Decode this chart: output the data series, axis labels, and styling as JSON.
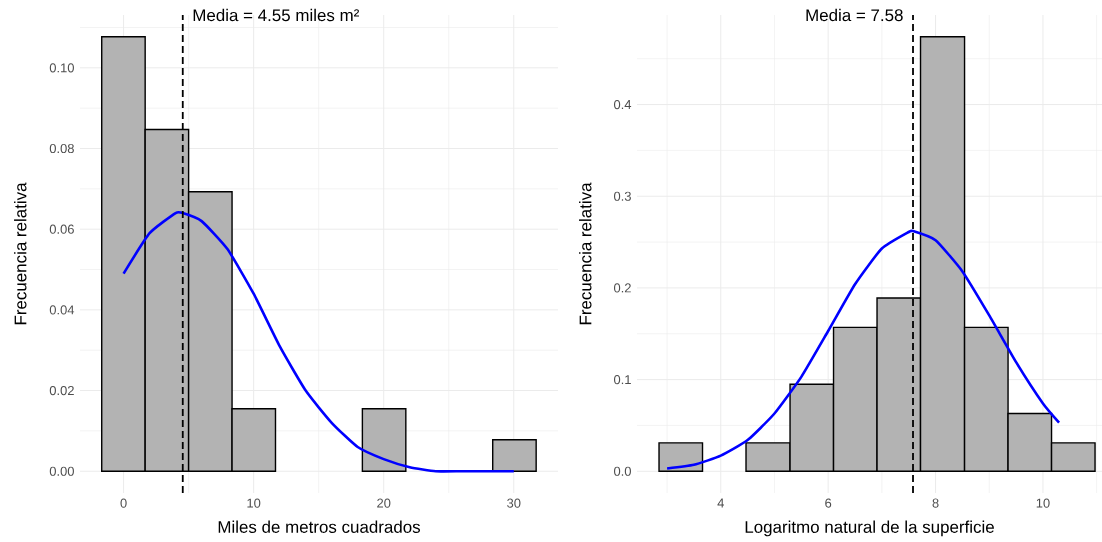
{
  "chart_data": [
    {
      "type": "histogram",
      "xlabel": "Miles de metros cuadrados",
      "ylabel": "Frecuencia relativa",
      "color": "#b3b3b3",
      "bins": [
        -1.68,
        1.66,
        5.0,
        8.34,
        11.68,
        15.02,
        18.36,
        21.7,
        25.04,
        28.38,
        31.72
      ],
      "values": [
        0.1077,
        0.0847,
        0.0693,
        0.0155,
        0,
        0,
        0.0155,
        0,
        0,
        0.0078
      ],
      "series": [
        {
          "type": "line",
          "color": "#0000ff",
          "x": [
            0,
            2,
            4,
            4.55,
            6,
            8,
            10,
            12,
            14,
            16,
            18,
            20,
            22,
            24,
            26,
            28,
            30
          ],
          "values": [
            0.049,
            0.059,
            0.064,
            0.064,
            0.062,
            0.055,
            0.044,
            0.031,
            0.02,
            0.012,
            0.006,
            0.003,
            0.001,
            0,
            0,
            0,
            0
          ]
        }
      ],
      "ref_lines": [
        {
          "axis": "x",
          "value": 4.55,
          "label": "Media = 4.55 miles m²",
          "color": "#000000",
          "line_style": "dashed"
        }
      ],
      "xlim": [
        -3.35,
        33.4
      ],
      "ylim": [
        -0.0054,
        0.1131
      ],
      "xticks": [
        0,
        10,
        20,
        30
      ],
      "yticks": [
        {
          "value": 0,
          "label": "0.00"
        },
        {
          "value": 0.02,
          "label": "0.02"
        },
        {
          "value": 0.04,
          "label": "0.04"
        },
        {
          "value": 0.06,
          "label": "0.06"
        },
        {
          "value": 0.08,
          "label": "0.08"
        },
        {
          "value": 0.1,
          "label": "0.10"
        }
      ],
      "grid": true
    },
    {
      "type": "histogram",
      "xlabel": "Logaritmo natural de la superficie",
      "ylabel": "Frecuencia relativa",
      "color": "#b3b3b3",
      "bins": [
        2.85,
        3.66,
        4.47,
        5.29,
        6.1,
        6.91,
        7.72,
        8.54,
        9.35,
        10.16,
        10.97
      ],
      "values": [
        0.031,
        0,
        0.031,
        0.095,
        0.157,
        0.189,
        0.474,
        0.157,
        0.063,
        0.031
      ],
      "series": [
        {
          "type": "line",
          "color": "#0000ff",
          "x": [
            3.0,
            3.5,
            4,
            4.5,
            5,
            5.5,
            6,
            6.5,
            7,
            7.5,
            7.58,
            8,
            8.5,
            9,
            9.5,
            10,
            10.3
          ],
          "values": [
            0.003,
            0.007,
            0.017,
            0.034,
            0.063,
            0.103,
            0.153,
            0.204,
            0.243,
            0.261,
            0.262,
            0.252,
            0.218,
            0.17,
            0.119,
            0.074,
            0.053
          ]
        }
      ],
      "ref_lines": [
        {
          "axis": "x",
          "value": 7.58,
          "label": "Media = 7.58",
          "color": "#000000",
          "line_style": "dashed"
        }
      ],
      "xlim": [
        2.44,
        11.1
      ],
      "ylim": [
        -0.0237,
        0.4977
      ],
      "xticks": [
        4,
        6,
        8,
        10
      ],
      "yticks": [
        {
          "value": 0,
          "label": "0.0"
        },
        {
          "value": 0.1,
          "label": "0.1"
        },
        {
          "value": 0.2,
          "label": "0.2"
        },
        {
          "value": 0.3,
          "label": "0.3"
        },
        {
          "value": 0.4,
          "label": "0.4"
        }
      ],
      "grid": true
    }
  ]
}
